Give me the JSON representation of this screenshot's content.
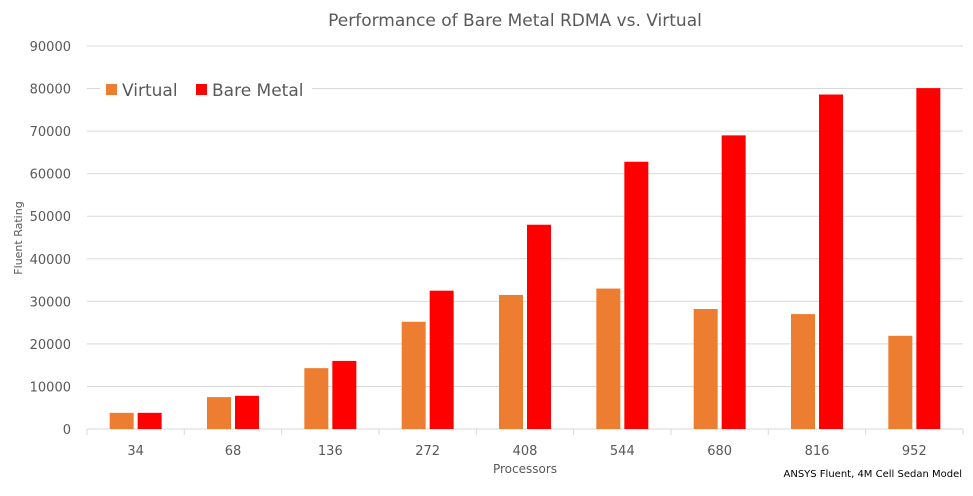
{
  "chart_data": {
    "type": "bar",
    "title": "Performance of Bare Metal RDMA vs. Virtual",
    "xlabel": "Processors",
    "ylabel": "Fluent Rating",
    "footnote": "ANSYS Fluent, 4M Cell Sedan Model",
    "categories": [
      "34",
      "68",
      "136",
      "272",
      "408",
      "544",
      "680",
      "816",
      "952"
    ],
    "series": [
      {
        "name": "Virtual",
        "color": "#ED7D31",
        "values": [
          3800,
          7500,
          14300,
          25200,
          31500,
          33000,
          28200,
          27000,
          21900
        ]
      },
      {
        "name": "Bare Metal",
        "color": "#FF0000",
        "values": [
          3800,
          7800,
          16000,
          32500,
          48000,
          62800,
          69000,
          78600,
          80100
        ]
      }
    ],
    "ylim": [
      0,
      90000
    ],
    "yticks": [
      "0",
      "10000",
      "20000",
      "30000",
      "40000",
      "50000",
      "60000",
      "70000",
      "80000",
      "90000"
    ],
    "grid": true,
    "legend_position": "top-left"
  }
}
